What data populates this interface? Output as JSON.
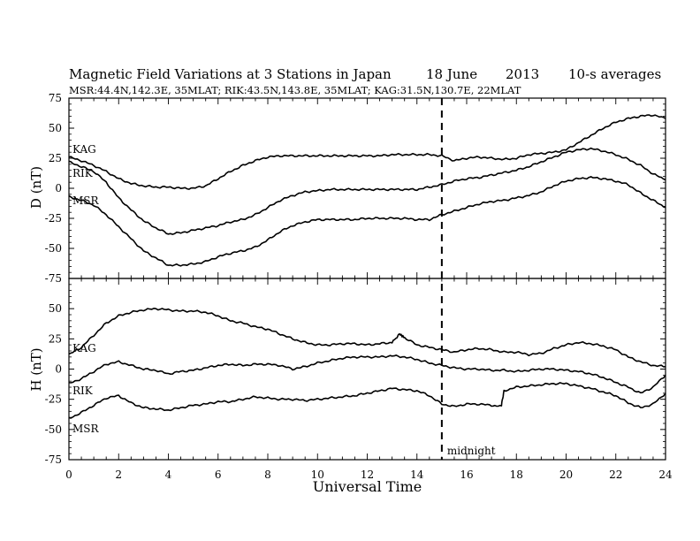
{
  "header": {
    "title": "Magnetic Field Variations at 3 Stations in Japan",
    "date": "18 June",
    "year": "2013",
    "averaging": "10-s averages",
    "stations_line": "MSR:44.4N,142.3E, 35MLAT;  RIK:43.5N,143.8E, 35MLAT;  KAG:31.5N,130.7E, 22MLAT"
  },
  "colors": {
    "line": "#000000",
    "background": "#ffffff"
  },
  "chart_data": [
    {
      "type": "line",
      "panel": "D",
      "ylabel": "D (nT)",
      "ylim": [
        -75,
        75
      ],
      "yticks": [
        -75,
        -50,
        -25,
        0,
        25,
        50,
        75
      ],
      "xlim": [
        0,
        24
      ],
      "series": [
        {
          "name": "KAG",
          "x": [
            0,
            0.5,
            1,
            1.5,
            2,
            2.5,
            3,
            3.5,
            4,
            4.5,
            5,
            5.5,
            6,
            6.5,
            7,
            7.5,
            8,
            8.5,
            9,
            9.5,
            10,
            10.5,
            11,
            11.5,
            12,
            12.5,
            13,
            13.5,
            14,
            14.5,
            15,
            15.5,
            16,
            16.5,
            17,
            17.5,
            18,
            18.5,
            19,
            19.5,
            20,
            20.5,
            21,
            21.5,
            22,
            22.5,
            23,
            23.5,
            24
          ],
          "values": [
            26,
            23,
            19,
            14,
            8,
            4,
            2,
            1,
            1,
            0,
            0,
            2,
            8,
            14,
            19,
            23,
            26,
            27,
            27,
            27,
            27,
            27,
            27,
            27,
            27,
            27,
            28,
            28,
            28,
            28,
            27,
            23,
            25,
            26,
            25,
            24,
            25,
            28,
            29,
            30,
            32,
            38,
            44,
            50,
            55,
            58,
            60,
            61,
            58
          ]
        },
        {
          "name": "RIK",
          "x": [
            0,
            0.5,
            1,
            1.5,
            2,
            2.5,
            3,
            3.5,
            4,
            4.5,
            5,
            5.5,
            6,
            6.5,
            7,
            7.5,
            8,
            8.5,
            9,
            9.5,
            10,
            10.5,
            11,
            11.5,
            12,
            12.5,
            13,
            13.5,
            14,
            14.5,
            15,
            15.5,
            16,
            16.5,
            17,
            17.5,
            18,
            18.5,
            19,
            19.5,
            20,
            20.5,
            21,
            21.5,
            22,
            22.5,
            23,
            23.5,
            24
          ],
          "values": [
            22,
            18,
            14,
            5,
            -8,
            -18,
            -27,
            -33,
            -38,
            -37,
            -35,
            -33,
            -31,
            -28,
            -26,
            -22,
            -16,
            -10,
            -6,
            -3,
            -2,
            -1,
            -1,
            -1,
            -1,
            -1,
            -1,
            -1,
            -1,
            1,
            3,
            6,
            8,
            9,
            11,
            13,
            15,
            18,
            22,
            26,
            30,
            32,
            33,
            31,
            28,
            24,
            19,
            12,
            7
          ]
        },
        {
          "name": "MSR",
          "x": [
            0,
            0.5,
            1,
            1.5,
            2,
            2.5,
            3,
            3.5,
            4,
            4.5,
            5,
            5.5,
            6,
            6.5,
            7,
            7.5,
            8,
            8.5,
            9,
            9.5,
            10,
            10.5,
            11,
            11.5,
            12,
            12.5,
            13,
            13.5,
            14,
            14.5,
            15,
            15.5,
            16,
            16.5,
            17,
            17.5,
            18,
            18.5,
            19,
            19.5,
            20,
            20.5,
            21,
            21.5,
            22,
            22.5,
            23,
            23.5,
            24
          ],
          "values": [
            -7,
            -10,
            -14,
            -22,
            -32,
            -42,
            -52,
            -58,
            -64,
            -64,
            -63,
            -61,
            -57,
            -54,
            -52,
            -49,
            -43,
            -36,
            -31,
            -28,
            -26,
            -26,
            -26,
            -26,
            -25,
            -25,
            -25,
            -25,
            -26,
            -26,
            -22,
            -19,
            -16,
            -13,
            -11,
            -10,
            -8,
            -6,
            -3,
            2,
            6,
            8,
            9,
            8,
            6,
            3,
            -4,
            -10,
            -16
          ]
        }
      ],
      "series_labels": [
        "KAG",
        "RIK",
        "MSR"
      ]
    },
    {
      "type": "line",
      "panel": "H",
      "ylabel": "H (nT)",
      "ylim": [
        -75,
        75
      ],
      "yticks": [
        -75,
        -50,
        -25,
        0,
        25,
        50,
        75
      ],
      "xlim": [
        0,
        24
      ],
      "xticks": [
        0,
        2,
        4,
        6,
        8,
        10,
        12,
        14,
        16,
        18,
        20,
        22,
        24
      ],
      "xlabel": "Universal Time",
      "annotation": {
        "x": 15,
        "label": "midnight",
        "style": "dashed"
      },
      "series": [
        {
          "name": "KAG",
          "x": [
            0,
            0.5,
            1,
            1.5,
            2,
            2.5,
            3,
            3.5,
            4,
            4.5,
            5,
            5.5,
            6,
            6.5,
            7,
            7.5,
            8,
            8.5,
            9,
            9.5,
            10,
            10.5,
            11,
            11.5,
            12,
            12.5,
            13,
            13.3,
            13.5,
            14,
            14.5,
            15,
            15.5,
            16,
            16.5,
            17,
            17.5,
            18,
            18.5,
            19,
            19.5,
            20,
            20.5,
            21,
            21.5,
            22,
            22.5,
            23,
            23.5,
            24
          ],
          "values": [
            12,
            18,
            28,
            38,
            44,
            47,
            49,
            50,
            49,
            48,
            48,
            47,
            44,
            40,
            38,
            35,
            33,
            29,
            25,
            22,
            20,
            20,
            21,
            21,
            20,
            21,
            22,
            29,
            26,
            20,
            18,
            16,
            14,
            16,
            17,
            16,
            14,
            14,
            12,
            13,
            17,
            20,
            22,
            21,
            19,
            16,
            10,
            6,
            3,
            2
          ]
        },
        {
          "name": "RIK",
          "x": [
            0,
            0.5,
            1,
            1.5,
            2,
            2.5,
            3,
            3.5,
            4,
            4.5,
            5,
            5.5,
            6,
            6.5,
            7,
            7.5,
            8,
            8.5,
            9,
            9.5,
            10,
            10.5,
            11,
            11.5,
            12,
            12.5,
            13,
            13.5,
            14,
            14.5,
            15,
            15.5,
            16,
            16.5,
            17,
            17.5,
            18,
            18.5,
            19,
            19.5,
            20,
            20.5,
            21,
            21.5,
            22,
            22.5,
            23,
            23.5,
            24
          ],
          "values": [
            -12,
            -8,
            -2,
            4,
            6,
            3,
            0,
            -1,
            -4,
            -2,
            -1,
            1,
            3,
            4,
            3,
            4,
            4,
            3,
            0,
            2,
            5,
            7,
            9,
            10,
            10,
            10,
            11,
            10,
            8,
            5,
            3,
            1,
            0,
            0,
            -1,
            -1,
            -2,
            -1,
            0,
            0,
            -1,
            -2,
            -4,
            -7,
            -11,
            -15,
            -20,
            -15,
            -5
          ]
        },
        {
          "name": "MSR",
          "x": [
            0,
            0.5,
            1,
            1.5,
            2,
            2.5,
            3,
            3.5,
            4,
            4.5,
            5,
            5.5,
            6,
            6.5,
            7,
            7.5,
            8,
            8.5,
            9,
            9.5,
            10,
            10.5,
            11,
            11.5,
            12,
            12.5,
            13,
            13.5,
            14,
            14.5,
            15,
            15.5,
            16,
            16.5,
            17,
            17.4,
            17.5,
            18,
            18.5,
            19,
            19.5,
            20,
            20.5,
            21,
            21.5,
            22,
            22.5,
            23,
            23.5,
            24
          ],
          "values": [
            -41,
            -36,
            -30,
            -24,
            -22,
            -28,
            -32,
            -33,
            -34,
            -32,
            -30,
            -29,
            -27,
            -27,
            -25,
            -23,
            -24,
            -25,
            -25,
            -26,
            -25,
            -24,
            -23,
            -22,
            -20,
            -18,
            -16,
            -17,
            -18,
            -22,
            -29,
            -31,
            -29,
            -29,
            -30,
            -30,
            -18,
            -15,
            -14,
            -13,
            -12,
            -12,
            -14,
            -16,
            -19,
            -22,
            -28,
            -32,
            -29,
            -20
          ]
        }
      ],
      "series_labels": [
        "KAG",
        "RIK",
        "MSR"
      ]
    }
  ]
}
